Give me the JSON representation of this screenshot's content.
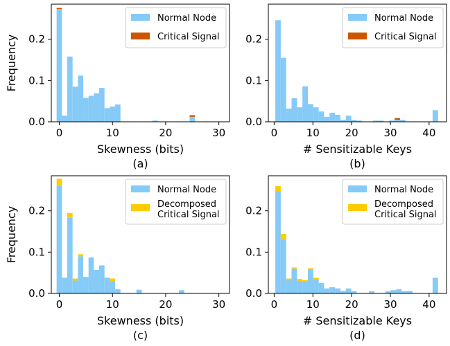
{
  "figure": {
    "ylabel": "Frequency",
    "colors": {
      "normal": "#86CAF7",
      "critical": "#CC5500",
      "decomposed": "#FFCC00"
    }
  },
  "chart_data": [
    {
      "type": "bar",
      "panel": "(a)",
      "xlabel": "Skewness (bits)",
      "ylabel": "Frequency",
      "xlim": [
        -1.5,
        32
      ],
      "ylim": [
        0,
        0.285
      ],
      "xticks": [
        "0",
        "10",
        "20",
        "30"
      ],
      "yticks": [
        "0.0",
        "0.1",
        "0.2"
      ],
      "grid": false,
      "legend_position": "top-right",
      "bin_width": 1,
      "series": [
        {
          "name": "Normal Node",
          "color": "#86CAF7",
          "x": [
            0,
            1,
            2,
            3,
            4,
            5,
            6,
            7,
            8,
            9,
            10,
            11,
            18,
            25
          ],
          "values": [
            0.273,
            0.015,
            0.158,
            0.085,
            0.112,
            0.058,
            0.063,
            0.069,
            0.082,
            0.033,
            0.037,
            0.042,
            0.003,
            0.012
          ]
        },
        {
          "name": "Critical Signal",
          "color": "#CC5500",
          "x": [
            0,
            25
          ],
          "values": [
            0.003,
            0.004
          ]
        }
      ]
    },
    {
      "type": "bar",
      "panel": "(b)",
      "xlabel": "# Sensitizable Keys",
      "ylabel": "",
      "xlim": [
        -1.5,
        44.5
      ],
      "ylim": [
        0,
        0.285
      ],
      "xticks": [
        "0",
        "10",
        "20",
        "30",
        "40"
      ],
      "yticks": [
        "0.0",
        "0.1",
        "0.2"
      ],
      "grid": false,
      "legend_position": "top-right",
      "bin_width": 1.4,
      "series": [
        {
          "name": "Normal Node",
          "color": "#86CAF7",
          "x": [
            1,
            2.4,
            3.8,
            5.2,
            6.6,
            8,
            9.4,
            10.8,
            12.2,
            13.6,
            15,
            16.4,
            17.8,
            19.2,
            20.6,
            22,
            26.2,
            27.6,
            30.4,
            31.8,
            33.2,
            41.6
          ],
          "values": [
            0.246,
            0.155,
            0.032,
            0.057,
            0.035,
            0.086,
            0.043,
            0.035,
            0.025,
            0.012,
            0.022,
            0.017,
            0.005,
            0.015,
            0.005,
            0.003,
            0.003,
            0.003,
            0.003,
            0.005,
            0.005,
            0.028
          ]
        },
        {
          "name": "Critical Signal",
          "color": "#CC5500",
          "x": [
            31.8
          ],
          "values": [
            0.004
          ]
        }
      ]
    },
    {
      "type": "bar",
      "panel": "(c)",
      "xlabel": "Skewness (bits)",
      "ylabel": "Frequency",
      "xlim": [
        -1.5,
        32
      ],
      "ylim": [
        0,
        0.285
      ],
      "xticks": [
        "0",
        "10",
        "20",
        "30"
      ],
      "yticks": [
        "0.0",
        "0.1",
        "0.2"
      ],
      "grid": false,
      "legend_position": "top-right",
      "bin_width": 1,
      "series": [
        {
          "name": "Normal Node",
          "color": "#86CAF7",
          "x": [
            0,
            1,
            2,
            3,
            4,
            5,
            6,
            7,
            8,
            9,
            10,
            11,
            15,
            23
          ],
          "values": [
            0.26,
            0.038,
            0.183,
            0.031,
            0.09,
            0.04,
            0.087,
            0.057,
            0.068,
            0.038,
            0.03,
            0.01,
            0.009,
            0.008
          ]
        },
        {
          "name": "Decomposed Critical Signal",
          "color": "#FFCC00",
          "x": [
            0,
            2,
            3,
            4,
            10
          ],
          "values": [
            0.018,
            0.012,
            0.005,
            0.005,
            0.006
          ]
        }
      ]
    },
    {
      "type": "bar",
      "panel": "(d)",
      "xlabel": "# Sensitizable Keys",
      "ylabel": "",
      "xlim": [
        -1.5,
        44.5
      ],
      "ylim": [
        0,
        0.285
      ],
      "xticks": [
        "0",
        "10",
        "20",
        "30",
        "40"
      ],
      "yticks": [
        "0.0",
        "0.1",
        "0.2"
      ],
      "grid": false,
      "legend_position": "top-right",
      "bin_width": 1.4,
      "series": [
        {
          "name": "Normal Node",
          "color": "#86CAF7",
          "x": [
            1,
            2.4,
            3.8,
            5.2,
            6.6,
            8,
            9.4,
            10.8,
            12.2,
            13.6,
            15,
            16.4,
            17.8,
            19.2,
            20.6,
            25.2,
            29.4,
            30.8,
            32.2,
            33.6,
            35,
            41.6
          ],
          "values": [
            0.248,
            0.13,
            0.032,
            0.06,
            0.03,
            0.03,
            0.058,
            0.035,
            0.025,
            0.012,
            0.015,
            0.012,
            0.006,
            0.012,
            0.005,
            0.005,
            0.005,
            0.008,
            0.01,
            0.005,
            0.006,
            0.038
          ]
        },
        {
          "name": "Decomposed Critical Signal",
          "color": "#FFCC00",
          "x": [
            1,
            2.4,
            3.8,
            5.2,
            6.6,
            8,
            9.4,
            10.8
          ],
          "values": [
            0.012,
            0.014,
            0.004,
            0.003,
            0.005,
            0.002,
            0.003,
            0.003
          ]
        }
      ]
    }
  ]
}
